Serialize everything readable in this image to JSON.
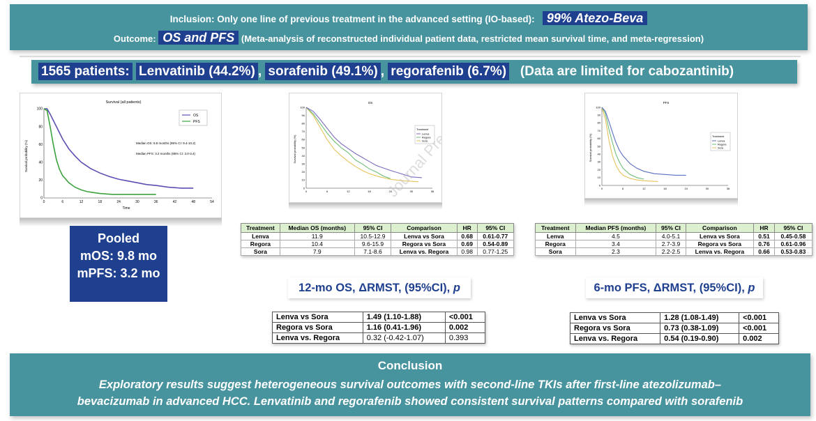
{
  "header": {
    "inclusion_label": "Inclusion: Only one line of previous treatment in the advanced setting (IO-based):",
    "inclusion_highlight": "99% Atezo-Beva",
    "outcome_label": "Outcome:",
    "outcome_highlight": "OS and PFS",
    "outcome_detail": "(Meta-analysis of reconstructed individual patient data, restricted mean survival time, and meta-regression)"
  },
  "patients": {
    "total": "1565 patients:",
    "lenva": "Lenvatinib (44.2%)",
    "sora": "sorafenib (49.1%)",
    "rego": "regorafenib (6.7%)",
    "note": "(Data are limited for cabozantinib)"
  },
  "pooled_chart": {
    "title": "Survival (all patients)",
    "ylabel": "Survival probability (%)",
    "xlabel": "Time",
    "xticks": [
      "0",
      "6",
      "12",
      "18",
      "24",
      "30",
      "36",
      "42",
      "48",
      "54"
    ],
    "yticks": [
      "0",
      "20",
      "40",
      "60",
      "80",
      "100"
    ],
    "legend": [
      "OS",
      "PFS"
    ],
    "ann_os": "Median OS: 9.8 months (95% CI: 9.4-10.2)",
    "ann_pfs": "Median PFS: 3.2 months (95% CI: 3.0-3.4)",
    "os_color": "#5a4fb3",
    "pfs_color": "#3da23d"
  },
  "os_chart": {
    "title": "OS",
    "ylabel": "Survival probability (%)",
    "legend_title": "Treatment",
    "legend": [
      "Lenva",
      "Regora",
      "Sora"
    ],
    "watermark": "Journal Pre-proof",
    "xticks": [
      "0",
      "6",
      "12",
      "18",
      "24",
      "30",
      "36"
    ],
    "yticks": [
      "0",
      "10",
      "20",
      "30",
      "40",
      "50",
      "60",
      "70",
      "80",
      "90",
      "100"
    ]
  },
  "pfs_chart": {
    "title": "PFS",
    "ylabel": "Survival probability (%)",
    "legend_title": "Treatment",
    "legend": [
      "Lenva",
      "Regora",
      "Sora"
    ],
    "xticks": [
      "0",
      "6",
      "12",
      "18",
      "24",
      "30",
      "36"
    ],
    "yticks": [
      "0",
      "10",
      "20",
      "30",
      "40",
      "50",
      "60",
      "70",
      "80",
      "90",
      "100"
    ]
  },
  "pooled_box": {
    "line1": "Pooled",
    "line2": "mOS: 9.8 mo",
    "line3": "mPFS: 3.2 mo"
  },
  "os_table": {
    "headers": [
      "Treatment",
      "Median OS (months)",
      "95% CI",
      "Comparison",
      "HR",
      "95% CI"
    ],
    "rows": [
      [
        "Lenva",
        "11.9",
        "10.5-12.9",
        "Lenva vs Sora",
        "0.68",
        "0.61-0.77"
      ],
      [
        "Regora",
        "10.4",
        "9.6-15.9",
        "Regora vs Sora",
        "0.69",
        "0.54-0.89"
      ],
      [
        "Sora",
        "7.9",
        "7.1-8.6",
        "Lenva vs. Regora",
        "0.98",
        "0.77-1.25"
      ]
    ]
  },
  "pfs_table": {
    "headers": [
      "Treatment",
      "Median PFS (months)",
      "95% CI",
      "Comparison",
      "HR",
      "95% CI"
    ],
    "rows": [
      [
        "Lenva",
        "4.5",
        "4.0-5.1",
        "Lenva vs Sora",
        "0.51",
        "0.45-0.58"
      ],
      [
        "Regora",
        "3.4",
        "2.7-3.9",
        "Regora vs Sora",
        "0.76",
        "0.61-0.96"
      ],
      [
        "Sora",
        "2.3",
        "2.2-2.5",
        "Lenva vs. Regora",
        "0.66",
        "0.53-0.83"
      ]
    ]
  },
  "os_rmst": {
    "title_main": "12-mo OS, ΔRMST, (95%CI),",
    "title_p": "p",
    "rows": [
      [
        "Lenva vs Sora",
        "1.49 (1.10-1.88)",
        "<0.001"
      ],
      [
        "Regora vs Sora",
        "1.16 (0.41-1.96)",
        "0.002"
      ],
      [
        "Lenva vs. Regora",
        "0.32 (-0.42-1.07)",
        "0.393"
      ]
    ]
  },
  "pfs_rmst": {
    "title_main": "6-mo PFS, ΔRMST, (95%CI),",
    "title_p": "p",
    "rows": [
      [
        "Lenva vs Sora",
        "1.28 (1.08-1.49)",
        "<0.001"
      ],
      [
        "Regora vs Sora",
        "0.73 (0.38-1.09)",
        "<0.001"
      ],
      [
        "Lenva vs. Regora",
        "0.54 (0.19-0.90)",
        "0.002"
      ]
    ]
  },
  "conclusion": {
    "title": "Conclusion",
    "line1": "Exploratory results suggest heterogeneous survival outcomes with second-line TKIs after first-line atezolizumab–",
    "line2": "bevacizumab in advanced HCC. Lenvatinib and regorafenib showed consistent survival patterns compared with sorafenib"
  },
  "colors": {
    "teal": "#47939e",
    "navy": "#1f3f8f",
    "header_green": "#dcefcf"
  }
}
